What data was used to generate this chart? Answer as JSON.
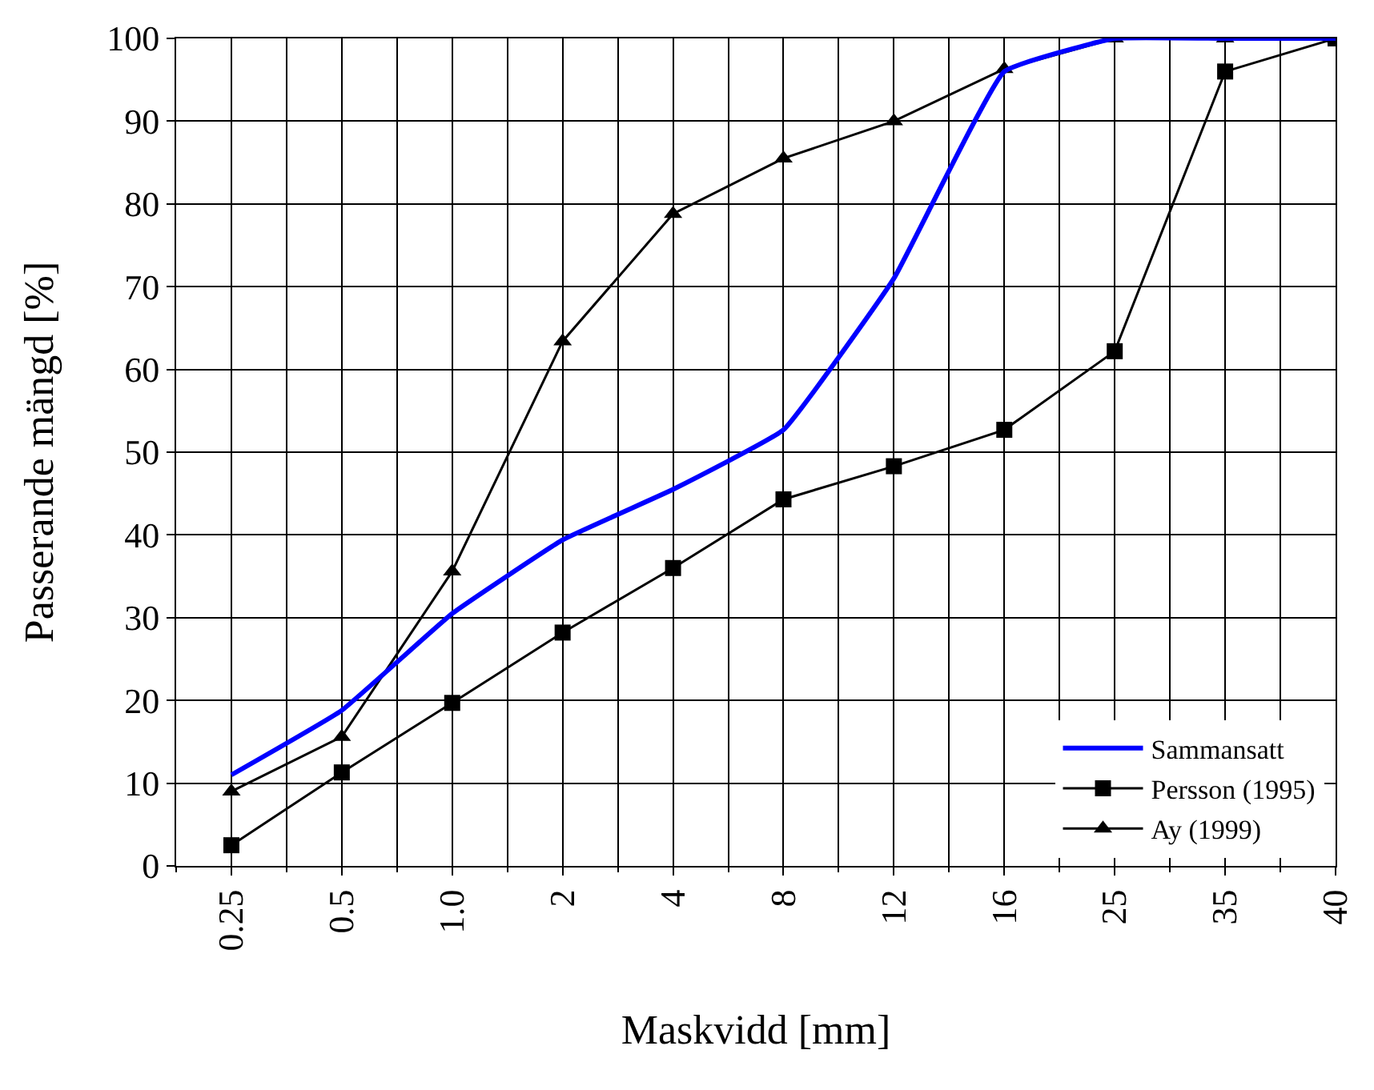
{
  "chart_data": {
    "type": "line",
    "xlabel": "Maskvidd [mm]",
    "ylabel": "Passerande mängd [%]",
    "categories": [
      "0.25",
      "0.5",
      "1.0",
      "2",
      "4",
      "8",
      "12",
      "16",
      "25",
      "35",
      "40"
    ],
    "series": [
      {
        "name": "Sammansatt",
        "color": "#0000ff",
        "marker": "none",
        "values": [
          11,
          18.8,
          30.5,
          39.4,
          45.5,
          52.7,
          71,
          96,
          100,
          100,
          100
        ]
      },
      {
        "name": "Persson (1995)",
        "color": "#000000",
        "marker": "square",
        "values": [
          2.5,
          11.3,
          19.7,
          28.2,
          36,
          44.3,
          48.3,
          52.7,
          62.2,
          96,
          100
        ]
      },
      {
        "name": "Ay (1999)",
        "color": "#000000",
        "marker": "triangle",
        "values": [
          9,
          15.6,
          35.6,
          63.4,
          78.8,
          85.5,
          90,
          96.3,
          100,
          100,
          100
        ]
      }
    ],
    "ylim": [
      0,
      100
    ],
    "yticks": [
      0,
      10,
      20,
      30,
      40,
      50,
      60,
      70,
      80,
      90,
      100
    ],
    "grid": true,
    "legend": "bottom right",
    "line_style": "solid"
  }
}
